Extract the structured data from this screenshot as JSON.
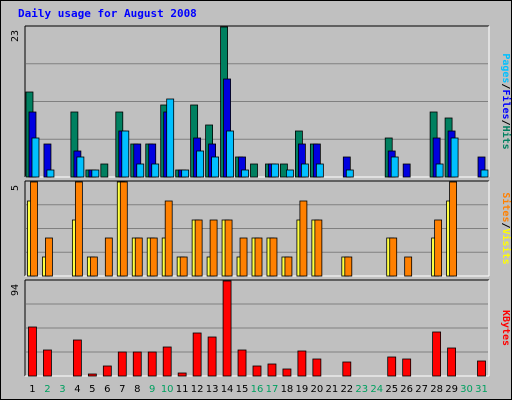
{
  "chart_data": {
    "type": "bar",
    "title": "Daily usage for August 2008",
    "x_days": [
      "1",
      "2",
      "3",
      "4",
      "5",
      "6",
      "7",
      "8",
      "9",
      "10",
      "11",
      "12",
      "13",
      "14",
      "15",
      "16",
      "17",
      "18",
      "19",
      "20",
      "21",
      "22",
      "23",
      "24",
      "25",
      "26",
      "27",
      "28",
      "29",
      "30",
      "31"
    ],
    "weekend_days": [
      "2",
      "3",
      "9",
      "10",
      "16",
      "17",
      "23",
      "24",
      "30",
      "31"
    ],
    "colors": {
      "background": "#c0c0c0",
      "title": "#0000ff",
      "weekday_label": "#000000",
      "weekend_label": "#00a060"
    },
    "panels": [
      {
        "name": "pages-files-hits",
        "ymax": "23",
        "ymax_value": 23,
        "right_label": [
          {
            "text": "Pages",
            "color": "#00c0ff"
          },
          {
            "text": "/",
            "color": "#000000"
          },
          {
            "text": "Files",
            "color": "#0000ff"
          },
          {
            "text": "/",
            "color": "#000000"
          },
          {
            "text": "Hits",
            "color": "#008060"
          }
        ],
        "series": [
          {
            "name": "Hits",
            "color": "#008060",
            "values": [
              13,
              0,
              0,
              10,
              1,
              2,
              10,
              5,
              5,
              11,
              1,
              11,
              8,
              23,
              3,
              2,
              2,
              2,
              7,
              5,
              0,
              0,
              0,
              0,
              6,
              0,
              0,
              10,
              9,
              0,
              0
            ]
          },
          {
            "name": "Files",
            "color": "#0000e0",
            "values": [
              10,
              5,
              0,
              4,
              1,
              0,
              7,
              5,
              5,
              10,
              1,
              6,
              5,
              15,
              3,
              0,
              2,
              0,
              5,
              5,
              0,
              3,
              0,
              0,
              4,
              2,
              0,
              6,
              7,
              0,
              3
            ]
          },
          {
            "name": "Pages",
            "color": "#00c0ff",
            "values": [
              6,
              1,
              0,
              3,
              1,
              0,
              7,
              2,
              2,
              12,
              1,
              4,
              3,
              7,
              1,
              0,
              2,
              1,
              2,
              2,
              0,
              1,
              0,
              0,
              3,
              0,
              0,
              2,
              6,
              0,
              1
            ]
          }
        ]
      },
      {
        "name": "sites-visits",
        "ymax": "5",
        "ymax_value": 5,
        "right_label": [
          {
            "text": "Sites",
            "color": "#ff8000"
          },
          {
            "text": "/",
            "color": "#000000"
          },
          {
            "text": "Visits",
            "color": "#ffff00"
          }
        ],
        "series": [
          {
            "name": "Visits",
            "color": "#ffff40",
            "values": [
              4,
              1,
              0,
              3,
              1,
              0,
              5,
              2,
              2,
              2,
              1,
              3,
              1,
              3,
              1,
              2,
              2,
              1,
              3,
              3,
              0,
              1,
              0,
              0,
              2,
              0,
              0,
              2,
              4,
              0,
              0
            ]
          },
          {
            "name": "Sites",
            "color": "#ff8000",
            "values": [
              5,
              2,
              0,
              5,
              1,
              2,
              5,
              2,
              2,
              4,
              1,
              3,
              3,
              3,
              2,
              2,
              2,
              1,
              4,
              3,
              0,
              1,
              0,
              0,
              2,
              1,
              0,
              3,
              5,
              0,
              0
            ]
          }
        ]
      },
      {
        "name": "kbytes",
        "ymax": "94",
        "ymax_value": 94,
        "right_label": [
          {
            "text": "KBytes",
            "color": "#ff0000"
          }
        ],
        "series": [
          {
            "name": "KBytes",
            "color": "#ff0000",
            "values": [
              48,
              26,
              0,
              36,
              2,
              10,
              24,
              24,
              24,
              29,
              3,
              43,
              39,
              94,
              26,
              10,
              12,
              7,
              25,
              17,
              0,
              14,
              0,
              0,
              19,
              17,
              0,
              44,
              28,
              0,
              15
            ]
          }
        ]
      }
    ]
  }
}
